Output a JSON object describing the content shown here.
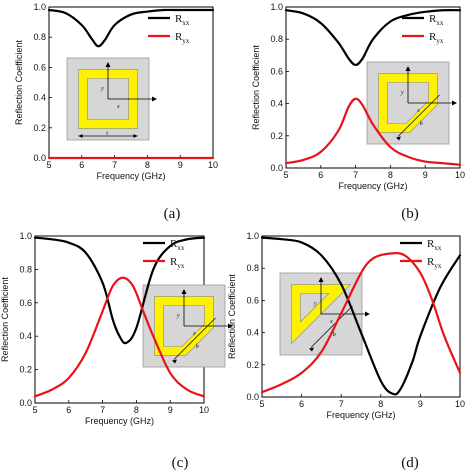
{
  "chart_data": [
    {
      "type": "line",
      "panel": "a",
      "caption": "(a)",
      "xlabel": "Frequency (GHz)",
      "ylabel": "Reflection Coefficient",
      "xlim": [
        5,
        10
      ],
      "ylim": [
        0,
        1.0
      ],
      "xticks": [
        "5",
        "6",
        "7",
        "8",
        "9",
        "10"
      ],
      "yticks": [
        "0.0",
        "0.2",
        "0.4",
        "0.6",
        "0.8",
        "1.0"
      ],
      "legend_position": "top-right",
      "series": [
        {
          "name": "R",
          "sub": "xx",
          "color": "#000000",
          "x": [
            5.0,
            5.5,
            6.0,
            6.3,
            6.5,
            6.7,
            7.0,
            7.5,
            8.0,
            8.5,
            9.0,
            9.5,
            10.0
          ],
          "y": [
            0.98,
            0.96,
            0.88,
            0.79,
            0.74,
            0.78,
            0.88,
            0.95,
            0.97,
            0.98,
            0.98,
            0.98,
            0.98
          ]
        },
        {
          "name": "R",
          "sub": "yx",
          "color": "#e8131b",
          "x": [
            5.0,
            6.0,
            7.0,
            8.0,
            9.0,
            10.0
          ],
          "y": [
            0.0,
            0.0,
            0.0,
            0.0,
            0.0,
            0.0
          ]
        }
      ],
      "inset_labels": [
        "y",
        "x",
        "s"
      ]
    },
    {
      "type": "line",
      "panel": "b",
      "caption": "(b)",
      "xlabel": "Frequency (GHz)",
      "ylabel": "Reflection Coefficient",
      "xlim": [
        5,
        10
      ],
      "ylim": [
        0,
        1.0
      ],
      "xticks": [
        "5",
        "6",
        "7",
        "8",
        "9",
        "10"
      ],
      "yticks": [
        "0.0",
        "0.2",
        "0.4",
        "0.6",
        "0.8",
        "1.0"
      ],
      "legend_position": "top-right",
      "series": [
        {
          "name": "R",
          "sub": "xx",
          "color": "#000000",
          "x": [
            5.0,
            5.5,
            6.0,
            6.5,
            6.8,
            7.0,
            7.2,
            7.5,
            8.0,
            8.5,
            9.0,
            9.5,
            10.0
          ],
          "y": [
            0.98,
            0.96,
            0.9,
            0.78,
            0.68,
            0.64,
            0.68,
            0.8,
            0.91,
            0.95,
            0.97,
            0.98,
            0.98
          ]
        },
        {
          "name": "R",
          "sub": "yx",
          "color": "#e8131b",
          "x": [
            5.0,
            5.5,
            6.0,
            6.5,
            6.8,
            7.0,
            7.2,
            7.5,
            8.0,
            8.5,
            9.0,
            9.5,
            10.0
          ],
          "y": [
            0.03,
            0.05,
            0.1,
            0.23,
            0.38,
            0.43,
            0.39,
            0.27,
            0.13,
            0.07,
            0.04,
            0.03,
            0.02
          ]
        }
      ],
      "inset_labels": [
        "y",
        "x",
        "b"
      ]
    },
    {
      "type": "line",
      "panel": "c",
      "caption": "(c)",
      "xlabel": "Frequency (GHz)",
      "ylabel": "Reflection Coefficient",
      "xlim": [
        5,
        10
      ],
      "ylim": [
        0,
        1.0
      ],
      "xticks": [
        "5",
        "6",
        "7",
        "8",
        "9",
        "10"
      ],
      "yticks": [
        "0.0",
        "0.2",
        "0.4",
        "0.6",
        "0.8",
        "1.0"
      ],
      "legend_position": "top-right",
      "series": [
        {
          "name": "R",
          "sub": "xx",
          "color": "#000000",
          "x": [
            5.0,
            5.5,
            6.0,
            6.5,
            7.0,
            7.3,
            7.5,
            7.7,
            8.0,
            8.5,
            9.0,
            9.5,
            10.0
          ],
          "y": [
            0.99,
            0.98,
            0.96,
            0.9,
            0.72,
            0.5,
            0.4,
            0.36,
            0.45,
            0.8,
            0.94,
            0.98,
            0.99
          ]
        },
        {
          "name": "R",
          "sub": "yx",
          "color": "#e8131b",
          "x": [
            5.0,
            5.5,
            6.0,
            6.5,
            7.0,
            7.3,
            7.6,
            7.9,
            8.2,
            8.5,
            9.0,
            9.5,
            10.0
          ],
          "y": [
            0.04,
            0.08,
            0.15,
            0.3,
            0.55,
            0.7,
            0.75,
            0.7,
            0.55,
            0.4,
            0.18,
            0.08,
            0.04
          ]
        }
      ],
      "inset_labels": [
        "y",
        "x",
        "b"
      ]
    },
    {
      "type": "line",
      "panel": "d",
      "caption": "(d)",
      "xlabel": "Frequency (GHz)",
      "ylabel": "Reflection Coefficient",
      "xlim": [
        5,
        10
      ],
      "ylim": [
        0,
        1.0
      ],
      "xticks": [
        "5",
        "6",
        "7",
        "8",
        "9",
        "10"
      ],
      "yticks": [
        "0.0",
        "0.2",
        "0.4",
        "0.6",
        "0.8",
        "1.0"
      ],
      "legend_position": "top-right",
      "series": [
        {
          "name": "R",
          "sub": "xx",
          "color": "#000000",
          "x": [
            5.0,
            5.5,
            6.0,
            6.5,
            7.0,
            7.5,
            8.0,
            8.3,
            8.5,
            8.8,
            9.0,
            9.5,
            10.0
          ],
          "y": [
            0.99,
            0.98,
            0.96,
            0.88,
            0.7,
            0.4,
            0.1,
            0.02,
            0.05,
            0.22,
            0.38,
            0.68,
            0.88
          ]
        },
        {
          "name": "R",
          "sub": "yx",
          "color": "#e8131b",
          "x": [
            5.0,
            5.5,
            6.0,
            6.5,
            7.0,
            7.5,
            7.8,
            8.2,
            8.6,
            9.0,
            9.3,
            9.6,
            10.0
          ],
          "y": [
            0.03,
            0.08,
            0.15,
            0.28,
            0.52,
            0.77,
            0.86,
            0.89,
            0.88,
            0.77,
            0.6,
            0.38,
            0.15
          ]
        }
      ],
      "inset_labels": [
        "y",
        "x",
        "b"
      ]
    }
  ]
}
